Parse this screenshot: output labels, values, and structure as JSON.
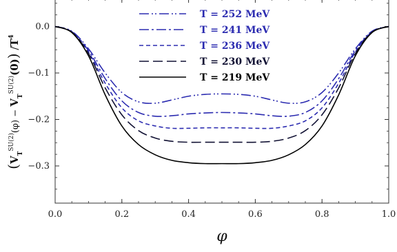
{
  "chart_data": {
    "type": "line",
    "xlabel": "φ",
    "ylabel": "(V_T^{SU(2)}(φ) − V_T^{SU(2)}(0)) / T⁴",
    "xlim": [
      0,
      1
    ],
    "ylim": [
      -0.38,
      0.06
    ],
    "xticks": [
      "0.0",
      "0.2",
      "0.4",
      "0.6",
      "0.8",
      "1.0"
    ],
    "yticks": [
      "0.0",
      "−0.1",
      "−0.2",
      "−0.3"
    ],
    "legend_position": "top-center",
    "series": [
      {
        "name": "T = 252 MeV",
        "color": "#2b2bb0",
        "dash": "dash-dot-dot",
        "x": [
          0,
          0.05,
          0.1,
          0.15,
          0.2,
          0.25,
          0.3,
          0.35,
          0.4,
          0.45,
          0.5,
          0.55,
          0.6,
          0.65,
          0.7,
          0.75,
          0.8,
          0.85,
          0.9,
          0.95,
          1.0
        ],
        "y": [
          0,
          -0.01,
          -0.048,
          -0.1,
          -0.142,
          -0.162,
          -0.165,
          -0.158,
          -0.15,
          -0.146,
          -0.145,
          -0.146,
          -0.15,
          -0.158,
          -0.165,
          -0.162,
          -0.142,
          -0.1,
          -0.048,
          -0.01,
          0
        ]
      },
      {
        "name": "T = 241 MeV",
        "color": "#2b2bb0",
        "dash": "dash-dot",
        "x": [
          0,
          0.05,
          0.1,
          0.15,
          0.2,
          0.25,
          0.3,
          0.35,
          0.4,
          0.45,
          0.5,
          0.55,
          0.6,
          0.65,
          0.7,
          0.75,
          0.8,
          0.85,
          0.9,
          0.95,
          1.0
        ],
        "y": [
          0,
          -0.011,
          -0.052,
          -0.112,
          -0.16,
          -0.185,
          -0.193,
          -0.192,
          -0.188,
          -0.186,
          -0.185,
          -0.186,
          -0.188,
          -0.192,
          -0.193,
          -0.185,
          -0.16,
          -0.112,
          -0.052,
          -0.011,
          0
        ]
      },
      {
        "name": "T = 236 MeV",
        "color": "#2b2bb0",
        "dash": "short-dash",
        "x": [
          0,
          0.05,
          0.1,
          0.15,
          0.2,
          0.25,
          0.3,
          0.35,
          0.4,
          0.45,
          0.5,
          0.55,
          0.6,
          0.65,
          0.7,
          0.75,
          0.8,
          0.85,
          0.9,
          0.95,
          1.0
        ],
        "y": [
          0,
          -0.012,
          -0.055,
          -0.122,
          -0.175,
          -0.203,
          -0.214,
          -0.219,
          -0.219,
          -0.218,
          -0.218,
          -0.218,
          -0.219,
          -0.219,
          -0.214,
          -0.203,
          -0.175,
          -0.122,
          -0.055,
          -0.012,
          0
        ]
      },
      {
        "name": "T = 230 MeV",
        "color": "#111133",
        "dash": "long-dash",
        "x": [
          0,
          0.05,
          0.1,
          0.15,
          0.2,
          0.25,
          0.3,
          0.35,
          0.4,
          0.45,
          0.5,
          0.55,
          0.6,
          0.65,
          0.7,
          0.75,
          0.8,
          0.85,
          0.9,
          0.95,
          1.0
        ],
        "y": [
          0,
          -0.012,
          -0.058,
          -0.132,
          -0.19,
          -0.224,
          -0.24,
          -0.247,
          -0.249,
          -0.249,
          -0.249,
          -0.249,
          -0.249,
          -0.247,
          -0.24,
          -0.224,
          -0.19,
          -0.132,
          -0.058,
          -0.012,
          0
        ]
      },
      {
        "name": "T = 219 MeV",
        "color": "#000000",
        "dash": "solid",
        "x": [
          0,
          0.05,
          0.1,
          0.15,
          0.2,
          0.25,
          0.3,
          0.35,
          0.4,
          0.45,
          0.5,
          0.55,
          0.6,
          0.65,
          0.7,
          0.75,
          0.8,
          0.85,
          0.9,
          0.95,
          1.0
        ],
        "y": [
          0,
          -0.013,
          -0.063,
          -0.147,
          -0.214,
          -0.254,
          -0.276,
          -0.288,
          -0.293,
          -0.295,
          -0.295,
          -0.295,
          -0.293,
          -0.288,
          -0.276,
          -0.254,
          -0.214,
          -0.147,
          -0.063,
          -0.013,
          0
        ]
      }
    ]
  }
}
